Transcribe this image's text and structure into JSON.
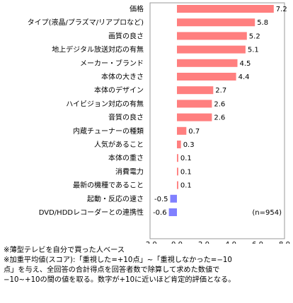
{
  "chart_data": {
    "type": "bar",
    "orientation": "horizontal",
    "categories": [
      "価格",
      "タイプ(液晶/プラズマ/リアプロなど)",
      "画質の良さ",
      "地上デジタル放送対応の有無",
      "メーカー・ブランド",
      "本体の大きさ",
      "本体のデザイン",
      "ハイビジョン対応の有無",
      "音質の良さ",
      "内蔵チューナーの種類",
      "人気があること",
      "本体の重さ",
      "消費電力",
      "最新の機種であること",
      "起動・反応の速さ",
      "DVD/HDDレコーダーとの連携性"
    ],
    "values": [
      7.2,
      5.8,
      5.2,
      5.1,
      4.5,
      4.4,
      2.7,
      2.6,
      2.6,
      0.7,
      0.3,
      0.1,
      0.1,
      0.1,
      -0.5,
      -0.6
    ],
    "value_labels": [
      "7.2",
      "5.8",
      "5.2",
      "5.1",
      "4.5",
      "4.4",
      "2.7",
      "2.6",
      "2.6",
      "0.7",
      "0.3",
      "0.1",
      "0.1",
      "0.1",
      "-0.5",
      "-0.6"
    ],
    "xlim": [
      -2.0,
      8.0
    ],
    "xticks": [
      "-2.0",
      "0.0",
      "2.0",
      "4.0",
      "6.0",
      "8.0"
    ],
    "grid": false,
    "colors": {
      "positive": "#ff7f7f",
      "negative": "#8080ff",
      "frame": "#9a9a9a"
    },
    "annotation": "(n=954)"
  },
  "notes": [
    "※薄型テレビを自分で買った人ベース",
    "※加重平均値(スコア):「重視した=+10点」~「重視しなかった=−10",
    "点」を与え、全回答の合計得点を回答者数で除算して求めた数値で",
    "−10~+10の間の値を取る。数字が+10に近いほど肯定的評価となる。"
  ]
}
